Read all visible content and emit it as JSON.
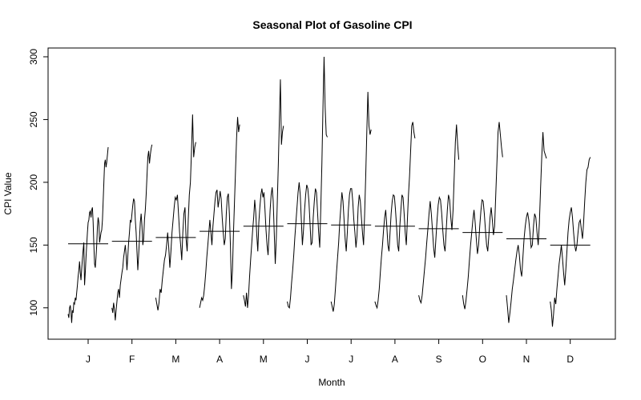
{
  "chart_data": {
    "type": "line",
    "title": "Seasonal Plot of Gasoline CPI",
    "xlabel": "Month",
    "ylabel": "CPI Value",
    "categories": [
      "J",
      "F",
      "M",
      "A",
      "M",
      "J",
      "J",
      "A",
      "S",
      "O",
      "N",
      "D"
    ],
    "yticks": [
      100,
      150,
      200,
      250,
      300
    ],
    "ylim": [
      75,
      307
    ],
    "grid": false,
    "legend": "none",
    "colors": {
      "line": "#000000",
      "frame": "#000000",
      "background": "#ffffff"
    },
    "month_means": [
      151,
      153,
      156,
      161,
      165,
      167,
      166,
      165,
      163,
      160,
      155,
      150
    ],
    "subseries": [
      {
        "month": "J",
        "values": [
          95,
          92,
          100,
          102,
          97,
          88,
          98,
          96,
          104,
          103,
          108,
          106,
          112,
          118,
          125,
          130,
          137,
          128,
          122,
          131,
          139,
          146,
          152,
          118,
          128,
          140,
          150,
          160,
          168,
          170,
          176,
          177,
          172,
          178,
          180,
          168,
          150,
          135,
          132,
          140,
          150,
          165,
          172,
          168,
          152,
          156,
          160,
          162,
          170,
          185,
          200,
          215,
          218,
          212,
          216,
          222,
          228
        ]
      },
      {
        "month": "F",
        "values": [
          100,
          96,
          104,
          99,
          90,
          98,
          105,
          112,
          115,
          108,
          118,
          123,
          128,
          132,
          140,
          145,
          150,
          142,
          130,
          141,
          152,
          160,
          170,
          168,
          175,
          182,
          187,
          185,
          170,
          160,
          145,
          130,
          142,
          155,
          168,
          175,
          165,
          150,
          155,
          170,
          178,
          190,
          205,
          220,
          225,
          215,
          222,
          227,
          230
        ]
      },
      {
        "month": "M",
        "values": [
          108,
          103,
          98,
          104,
          115,
          112,
          122,
          130,
          138,
          142,
          150,
          160,
          148,
          132,
          145,
          160,
          170,
          180,
          188,
          186,
          190,
          175,
          160,
          150,
          138,
          160,
          175,
          180,
          155,
          145,
          170,
          190,
          200,
          225,
          254,
          220,
          228,
          232
        ]
      },
      {
        "month": "A",
        "values": [
          100,
          104,
          108,
          106,
          110,
          118,
          128,
          140,
          150,
          160,
          170,
          160,
          150,
          165,
          175,
          185,
          192,
          194,
          180,
          186,
          193,
          187,
          172,
          160,
          150,
          155,
          175,
          188,
          191,
          175,
          150,
          115,
          130,
          160,
          185,
          210,
          235,
          252,
          240,
          246
        ]
      },
      {
        "month": "M",
        "values": [
          110,
          106,
          101,
          112,
          100,
          110,
          125,
          138,
          150,
          162,
          172,
          186,
          176,
          158,
          145,
          168,
          180,
          190,
          195,
          188,
          192,
          178,
          162,
          150,
          142,
          160,
          178,
          190,
          196,
          185,
          160,
          135,
          155,
          185,
          215,
          250,
          282,
          230,
          240,
          245
        ]
      },
      {
        "month": "J",
        "values": [
          105,
          101,
          100,
          108,
          120,
          130,
          142,
          156,
          168,
          180,
          192,
          200,
          190,
          170,
          150,
          162,
          178,
          190,
          198,
          195,
          185,
          168,
          150,
          152,
          172,
          185,
          195,
          192,
          176,
          160,
          148,
          180,
          215,
          260,
          300,
          260,
          238,
          236
        ]
      },
      {
        "month": "J",
        "values": [
          105,
          101,
          97,
          103,
          115,
          128,
          140,
          152,
          168,
          180,
          192,
          185,
          170,
          155,
          145,
          160,
          178,
          190,
          195,
          195,
          185,
          170,
          160,
          148,
          158,
          180,
          190,
          185,
          172,
          160,
          150,
          175,
          205,
          240,
          272,
          245,
          238,
          242
        ]
      },
      {
        "month": "A",
        "values": [
          105,
          102,
          100,
          106,
          115,
          128,
          140,
          150,
          162,
          172,
          178,
          165,
          150,
          145,
          160,
          175,
          185,
          190,
          189,
          178,
          165,
          150,
          145,
          165,
          178,
          190,
          188,
          175,
          160,
          150,
          170,
          190,
          205,
          225,
          245,
          248,
          240,
          235
        ]
      },
      {
        "month": "S",
        "values": [
          110,
          106,
          104,
          110,
          120,
          130,
          140,
          152,
          163,
          175,
          185,
          175,
          162,
          148,
          140,
          155,
          170,
          182,
          188,
          186,
          176,
          162,
          150,
          145,
          162,
          178,
          190,
          186,
          172,
          162,
          178,
          205,
          232,
          246,
          230,
          218
        ]
      },
      {
        "month": "O",
        "values": [
          110,
          103,
          99,
          106,
          115,
          125,
          138,
          150,
          160,
          170,
          178,
          168,
          155,
          143,
          150,
          165,
          177,
          186,
          185,
          175,
          162,
          150,
          145,
          158,
          172,
          180,
          170,
          158,
          165,
          190,
          215,
          240,
          248,
          238,
          228,
          220
        ]
      },
      {
        "month": "N",
        "values": [
          110,
          100,
          88,
          96,
          105,
          115,
          122,
          130,
          138,
          145,
          150,
          142,
          130,
          125,
          140,
          155,
          165,
          172,
          176,
          170,
          160,
          148,
          150,
          165,
          175,
          172,
          160,
          150,
          168,
          195,
          220,
          240,
          225,
          222,
          219
        ]
      },
      {
        "month": "D",
        "values": [
          105,
          98,
          85,
          95,
          108,
          103,
          115,
          125,
          135,
          142,
          150,
          140,
          128,
          118,
          130,
          145,
          160,
          170,
          176,
          180,
          172,
          160,
          150,
          145,
          150,
          160,
          168,
          170,
          162,
          155,
          168,
          185,
          200,
          210,
          212,
          218,
          220
        ]
      }
    ]
  }
}
